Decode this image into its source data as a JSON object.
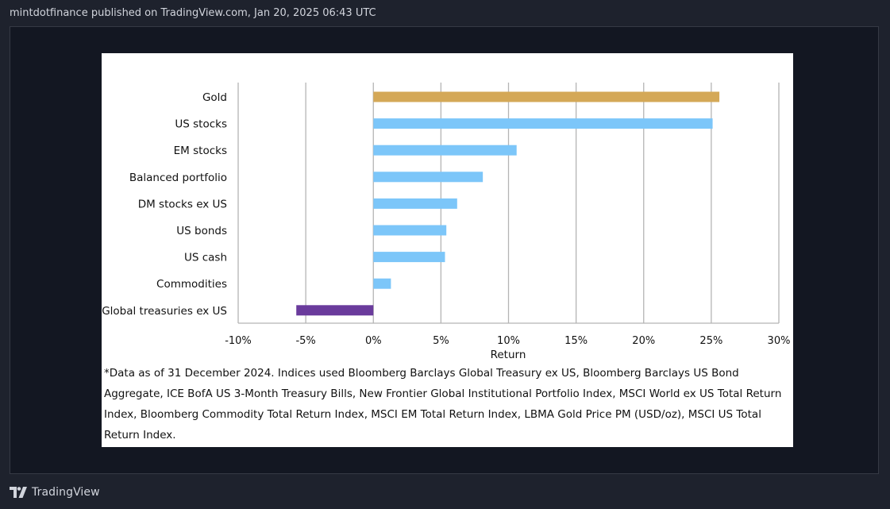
{
  "header": {
    "text": "mintdotfinance published on TradingView.com, Jan 20, 2025 06:43 UTC"
  },
  "brand": {
    "name": "TradingView",
    "logo_icon": "tradingview-logo-icon"
  },
  "colors": {
    "gold": "#d4a857",
    "asset": "#7cc6f9",
    "treasuries": "#6a3b9c",
    "grid": "#b4b4b4"
  },
  "chart_data": {
    "type": "bar",
    "orientation": "horizontal",
    "xlabel": "Return",
    "xlim": [
      -10,
      30
    ],
    "xticks": [
      -10,
      -5,
      0,
      5,
      10,
      15,
      20,
      25,
      30
    ],
    "xtick_labels": [
      "-10%",
      "-5%",
      "0%",
      "5%",
      "10%",
      "15%",
      "20%",
      "25%",
      "30%"
    ],
    "categories": [
      "Gold",
      "US stocks",
      "EM stocks",
      "Balanced portfolio",
      "DM stocks ex US",
      "US bonds",
      "US cash",
      "Commodities",
      "Global treasuries ex US"
    ],
    "values": [
      25.6,
      25.1,
      10.6,
      8.1,
      6.2,
      5.4,
      5.3,
      1.3,
      -5.7
    ],
    "bar_colors": [
      "#d4a857",
      "#7cc6f9",
      "#7cc6f9",
      "#7cc6f9",
      "#7cc6f9",
      "#7cc6f9",
      "#7cc6f9",
      "#7cc6f9",
      "#6a3b9c"
    ],
    "grid": "vertical",
    "footnote": "*Data as of 31 December 2024. Indices used Bloomberg Barclays Global Treasury ex US, Bloomberg Barclays US Bond Aggregate, ICE BofA US 3-Month Treasury Bills, New Frontier Global Institutional Portfolio Index, MSCI World ex US Total Return Index, Bloomberg Commodity Total Return Index, MSCI EM Total Return Index, LBMA Gold Price PM (USD/oz), MSCI US Total Return Index."
  }
}
